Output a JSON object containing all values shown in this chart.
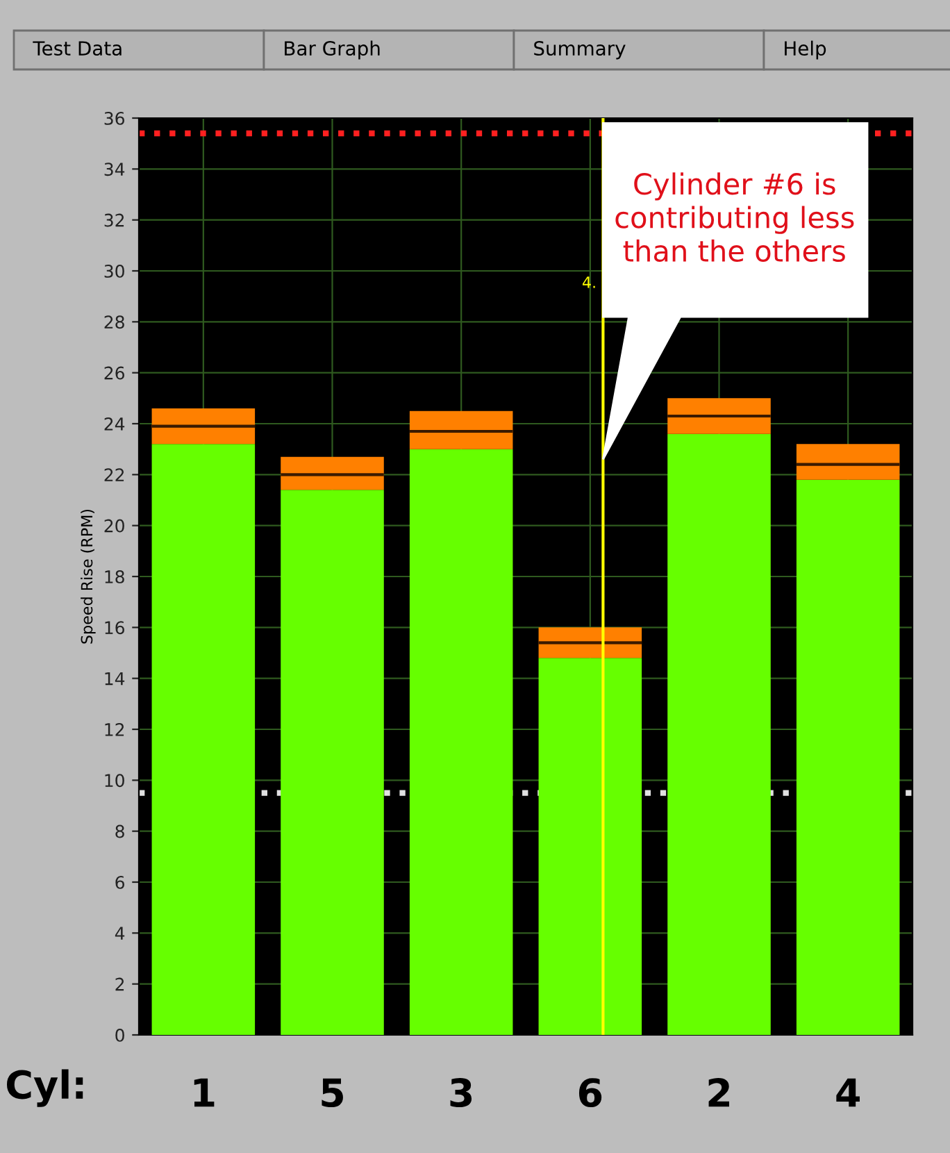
{
  "chart_data": {
    "type": "bar",
    "stacked": true,
    "ylabel": "Speed Rise (RPM)",
    "xlabel": "Cyl:",
    "categories": [
      "1",
      "5",
      "3",
      "6",
      "2",
      "4"
    ],
    "series": [
      {
        "color": "#66ff00",
        "values": [
          23.2,
          21.4,
          23.0,
          14.8,
          23.6,
          21.8
        ]
      },
      {
        "color": "#ff8000",
        "values": [
          0.7,
          0.6,
          0.7,
          0.6,
          0.7,
          0.6
        ]
      },
      {
        "color": "#ff8000",
        "values": [
          0.7,
          0.7,
          0.8,
          0.6,
          0.7,
          0.8
        ]
      }
    ],
    "ylim": [
      0,
      36
    ],
    "yticks": [
      0,
      2,
      4,
      6,
      8,
      10,
      12,
      14,
      16,
      18,
      20,
      22,
      24,
      26,
      28,
      30,
      32,
      34,
      36
    ],
    "grid": true,
    "ref_lines": [
      {
        "axis": "y",
        "value": 35.4,
        "color": "#ff2020",
        "line_style": "dotted"
      },
      {
        "axis": "y",
        "value": 9.5,
        "color": "#e0e0e0",
        "line_style": "dotted"
      },
      {
        "axis": "x",
        "value": "6",
        "label": "4.",
        "color": "#ffff00",
        "line_style": "solid"
      }
    ],
    "annotations": [
      "Test Data",
      "Bar Graph",
      "Summary",
      "Help",
      "Cylinder #6 is contributing less than the others"
    ]
  }
}
